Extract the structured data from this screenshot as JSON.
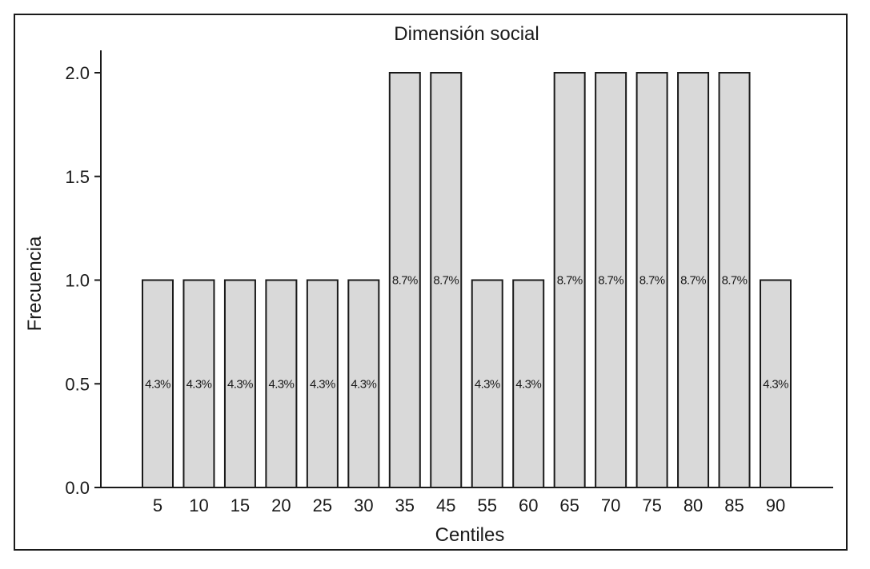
{
  "chart_data": {
    "type": "bar",
    "title": "Dimensión social",
    "xlabel": "Centiles",
    "ylabel": "Frecuencia",
    "categories": [
      "5",
      "10",
      "15",
      "20",
      "25",
      "30",
      "35",
      "45",
      "55",
      "60",
      "65",
      "70",
      "75",
      "80",
      "85",
      "90"
    ],
    "values": [
      1,
      1,
      1,
      1,
      1,
      1,
      2,
      2,
      1,
      1,
      2,
      2,
      2,
      2,
      2,
      1
    ],
    "data_labels": [
      "4.3%",
      "4.3%",
      "4.3%",
      "4.3%",
      "4.3%",
      "4.3%",
      "8.7%",
      "8.7%",
      "4.3%",
      "4.3%",
      "8.7%",
      "8.7%",
      "8.7%",
      "8.7%",
      "8.7%",
      "4.3%"
    ],
    "ylim": [
      0,
      2
    ],
    "yticks": [
      "0.0",
      "0.5",
      "1.0",
      "1.5",
      "2.0"
    ],
    "grid": false,
    "bar_color": "#d9d9d9",
    "edge_color": "#1a1a1a"
  }
}
